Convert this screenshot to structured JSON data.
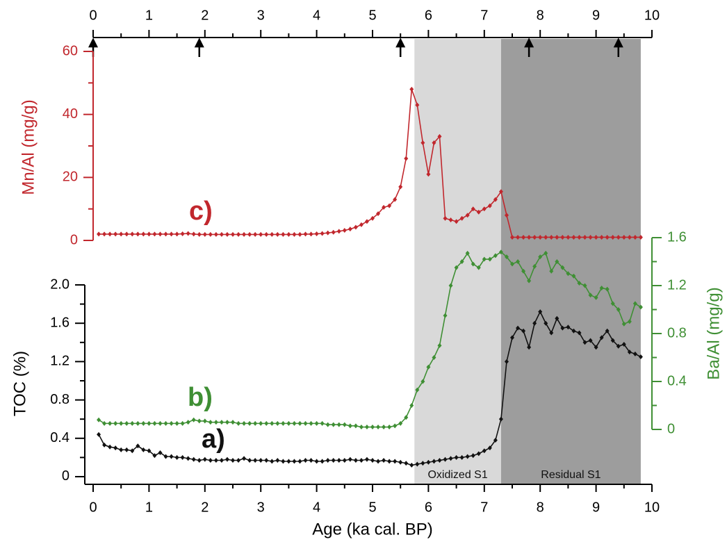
{
  "chart_data": {
    "type": "line",
    "x_label": "Age (ka cal. BP)",
    "y_label": "TOC (%)",
    "y2_label": "Ba/Al (mg/g)",
    "y3_label": "Mn/Al (mg/g)",
    "xlim": [
      0,
      10
    ],
    "xticks": [
      0,
      1,
      2,
      3,
      4,
      5,
      6,
      7,
      8,
      9,
      10
    ],
    "xminorticks": [
      0.5,
      1.5,
      2.5,
      3.5,
      4.5,
      5.5,
      6.5,
      7.5,
      8.5,
      9.5
    ],
    "ylim": [
      -0.08,
      2.0
    ],
    "yticks": [
      0,
      0.4,
      0.8,
      1.2,
      1.6,
      {
        "value": 2,
        "label": "2.0"
      }
    ],
    "yminorticks": [
      0.2,
      0.6,
      1.0,
      1.4,
      1.8
    ],
    "y2lim": [
      0,
      1.6
    ],
    "y2ticks": [
      0,
      0.4,
      0.8,
      1.2,
      1.6
    ],
    "y2minorticks": [
      0.2,
      0.6,
      1.0,
      1.4
    ],
    "y3lim": [
      0,
      60
    ],
    "y3ticks": [
      0,
      20,
      40,
      60
    ],
    "y3minorticks": [
      10,
      30,
      50
    ],
    "arrows": [
      0,
      1.9,
      5.5,
      7.8,
      9.4
    ],
    "regions": [
      {
        "label": "Oxidized S1",
        "start": 5.75,
        "end": 7.3,
        "color": "#d9d9d9"
      },
      {
        "label": "Residual S1",
        "start": 7.3,
        "end": 9.8,
        "color": "#9d9d9d"
      }
    ],
    "annotations": [
      "c)",
      "b)",
      "a)"
    ],
    "x": [
      0.1,
      0.2,
      0.3,
      0.4,
      0.5,
      0.6,
      0.7,
      0.8,
      0.9,
      1.0,
      1.1,
      1.2,
      1.3,
      1.4,
      1.5,
      1.6,
      1.7,
      1.8,
      1.9,
      2.0,
      2.1,
      2.2,
      2.3,
      2.4,
      2.5,
      2.6,
      2.7,
      2.8,
      2.9,
      3.0,
      3.1,
      3.2,
      3.3,
      3.4,
      3.5,
      3.6,
      3.7,
      3.8,
      3.9,
      4.0,
      4.1,
      4.2,
      4.3,
      4.4,
      4.5,
      4.6,
      4.7,
      4.8,
      4.9,
      5.0,
      5.1,
      5.2,
      5.3,
      5.4,
      5.5,
      5.6,
      5.7,
      5.8,
      5.9,
      6.0,
      6.1,
      6.2,
      6.3,
      6.4,
      6.5,
      6.6,
      6.7,
      6.8,
      6.9,
      7.0,
      7.1,
      7.2,
      7.3,
      7.4,
      7.5,
      7.6,
      7.7,
      7.8,
      7.9,
      8.0,
      8.1,
      8.2,
      8.3,
      8.4,
      8.5,
      8.6,
      8.7,
      8.8,
      8.9,
      9.0,
      9.1,
      9.2,
      9.3,
      9.4,
      9.5,
      9.6,
      9.7,
      9.8
    ],
    "series": [
      {
        "name": "Mn/Al",
        "axis": "y3",
        "color": "#c1272d",
        "values": [
          2.0,
          2.0,
          2.0,
          2.0,
          2.0,
          2.0,
          2.0,
          2.0,
          2.0,
          2.0,
          2.0,
          2.0,
          2.0,
          2.0,
          2.0,
          2.1,
          2.2,
          2.0,
          1.9,
          1.9,
          1.9,
          1.9,
          1.9,
          1.9,
          1.9,
          1.9,
          1.9,
          1.9,
          1.9,
          1.9,
          1.9,
          1.9,
          1.9,
          1.9,
          1.9,
          1.9,
          1.9,
          2.0,
          2.0,
          2.1,
          2.2,
          2.4,
          2.6,
          2.9,
          3.2,
          3.6,
          4.2,
          5.0,
          6.0,
          7.0,
          8.5,
          10.5,
          11.0,
          13.0,
          17.0,
          26.0,
          48.0,
          43.0,
          31.0,
          21.0,
          31.0,
          33.0,
          7.0,
          6.5,
          6.0,
          7.0,
          8.0,
          10.0,
          9.0,
          10.0,
          11.0,
          13.0,
          15.5,
          8.0,
          1.0,
          1.0,
          1.0,
          1.0,
          1.0,
          1.0,
          1.0,
          1.0,
          1.0,
          1.0,
          1.0,
          1.0,
          1.0,
          1.0,
          1.0,
          1.0,
          1.0,
          1.0,
          1.0,
          1.0,
          1.0,
          1.0,
          1.0,
          1.0
        ]
      },
      {
        "name": "Ba/Al",
        "axis": "y2",
        "color": "#3f8f34",
        "values": [
          0.08,
          0.05,
          0.05,
          0.05,
          0.05,
          0.05,
          0.05,
          0.05,
          0.05,
          0.05,
          0.05,
          0.05,
          0.05,
          0.05,
          0.05,
          0.05,
          0.06,
          0.08,
          0.07,
          0.07,
          0.06,
          0.06,
          0.06,
          0.06,
          0.06,
          0.05,
          0.05,
          0.05,
          0.05,
          0.05,
          0.05,
          0.05,
          0.05,
          0.05,
          0.05,
          0.05,
          0.05,
          0.05,
          0.05,
          0.05,
          0.05,
          0.04,
          0.04,
          0.04,
          0.04,
          0.03,
          0.03,
          0.02,
          0.02,
          0.02,
          0.02,
          0.02,
          0.02,
          0.03,
          0.05,
          0.1,
          0.2,
          0.33,
          0.4,
          0.52,
          0.6,
          0.7,
          0.95,
          1.2,
          1.35,
          1.4,
          1.47,
          1.38,
          1.35,
          1.42,
          1.42,
          1.45,
          1.48,
          1.44,
          1.38,
          1.4,
          1.32,
          1.24,
          1.36,
          1.44,
          1.47,
          1.32,
          1.4,
          1.35,
          1.3,
          1.28,
          1.22,
          1.2,
          1.12,
          1.1,
          1.18,
          1.17,
          1.05,
          1.0,
          0.88,
          0.9,
          1.05,
          1.02
        ]
      },
      {
        "name": "TOC",
        "axis": "y",
        "color": "#111111",
        "values": [
          0.44,
          0.33,
          0.31,
          0.3,
          0.28,
          0.28,
          0.27,
          0.32,
          0.28,
          0.27,
          0.22,
          0.25,
          0.21,
          0.21,
          0.2,
          0.2,
          0.19,
          0.18,
          0.17,
          0.18,
          0.17,
          0.17,
          0.17,
          0.18,
          0.17,
          0.17,
          0.19,
          0.17,
          0.17,
          0.17,
          0.17,
          0.16,
          0.17,
          0.16,
          0.16,
          0.16,
          0.16,
          0.17,
          0.17,
          0.16,
          0.16,
          0.17,
          0.17,
          0.17,
          0.17,
          0.18,
          0.17,
          0.17,
          0.18,
          0.17,
          0.16,
          0.17,
          0.16,
          0.16,
          0.15,
          0.14,
          0.12,
          0.13,
          0.14,
          0.15,
          0.16,
          0.17,
          0.18,
          0.19,
          0.2,
          0.2,
          0.21,
          0.22,
          0.24,
          0.27,
          0.3,
          0.38,
          0.6,
          1.2,
          1.45,
          1.55,
          1.52,
          1.35,
          1.6,
          1.72,
          1.6,
          1.5,
          1.65,
          1.55,
          1.56,
          1.52,
          1.5,
          1.4,
          1.42,
          1.35,
          1.45,
          1.52,
          1.42,
          1.36,
          1.38,
          1.3,
          1.28,
          1.25
        ]
      }
    ]
  }
}
